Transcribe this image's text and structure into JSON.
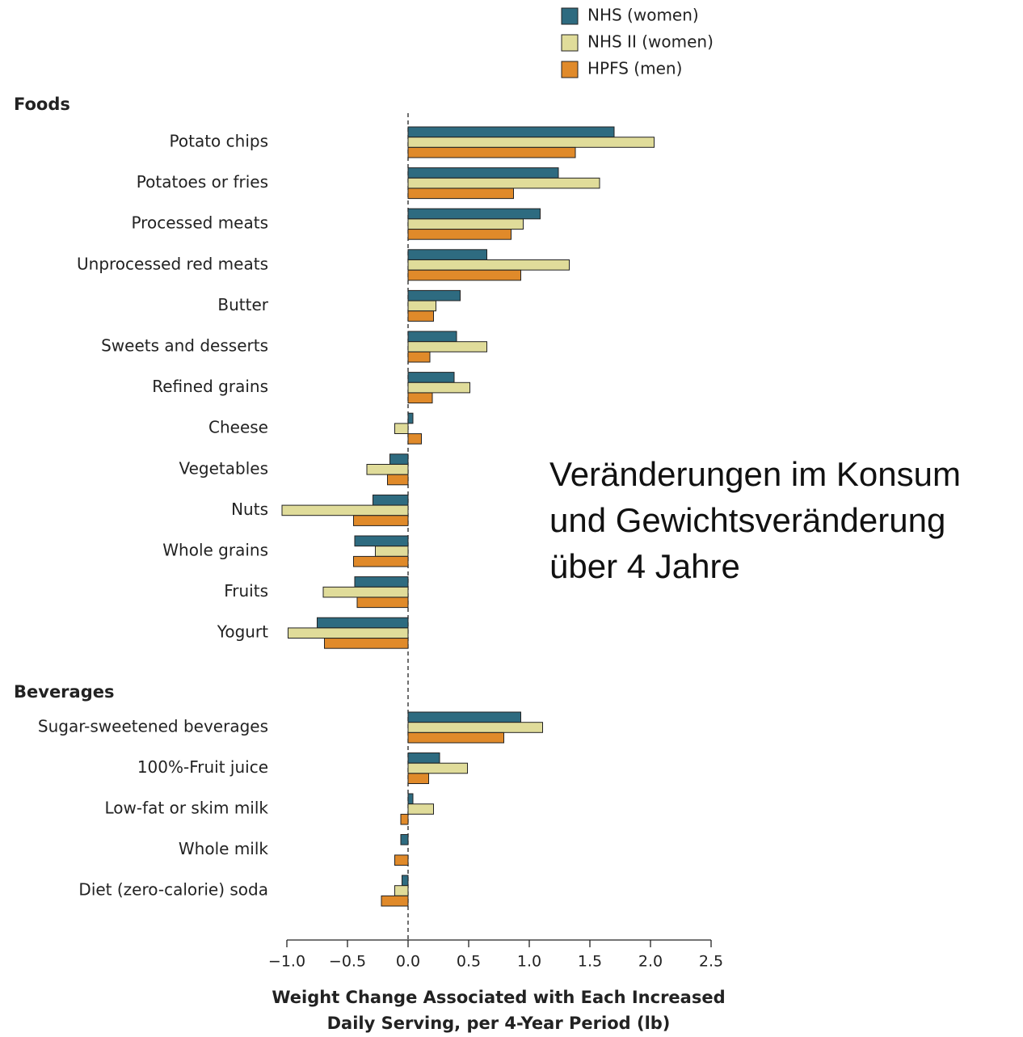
{
  "chart_data": {
    "type": "grouped-hbar",
    "annotation": "Veränderungen im Konsum und Gewichtsveränderung über 4 Jahre",
    "xlabel": [
      "Weight Change Associated with Each Increased",
      "Daily Serving, per 4-Year Period (lb)"
    ],
    "groups": [
      {
        "label": "Foods",
        "categories": [
          "Potato chips",
          "Potatoes or fries",
          "Processed meats",
          "Unprocessed red meats",
          "Butter",
          "Sweets and desserts",
          "Refined grains",
          "Cheese",
          "Vegetables",
          "Nuts",
          "Whole grains",
          "Fruits",
          "Yogurt"
        ]
      },
      {
        "label": "Beverages",
        "categories": [
          "Sugar-sweetened beverages",
          "100%-Fruit juice",
          "Low-fat or skim milk",
          "Whole milk",
          "Diet (zero-calorie) soda"
        ]
      }
    ],
    "series": [
      {
        "name": "NHS (women)",
        "color": "#2e6b80",
        "values": [
          [
            1.7,
            1.24,
            1.09,
            0.65,
            0.43,
            0.4,
            0.38,
            0.04,
            -0.15,
            -0.29,
            -0.44,
            -0.44,
            -0.75
          ],
          [
            0.93,
            0.26,
            0.04,
            -0.06,
            -0.05
          ]
        ]
      },
      {
        "name": "NHS II (women)",
        "color": "#e0dc9a",
        "values": [
          [
            2.03,
            1.58,
            0.95,
            1.33,
            0.23,
            0.65,
            0.51,
            -0.11,
            -0.34,
            -1.04,
            -0.27,
            -0.7,
            -0.99
          ],
          [
            1.11,
            0.49,
            0.21,
            null,
            -0.11
          ]
        ]
      },
      {
        "name": "HPFS (men)",
        "color": "#e08a2a",
        "values": [
          [
            1.38,
            0.87,
            0.85,
            0.93,
            0.21,
            0.18,
            0.2,
            0.11,
            -0.17,
            -0.45,
            -0.45,
            -0.42,
            -0.69
          ],
          [
            0.79,
            0.17,
            -0.06,
            -0.11,
            -0.22
          ]
        ]
      }
    ],
    "xlim": [
      -1.0,
      2.5
    ],
    "xticks": [
      {
        "value": -1.0,
        "label": "−1.0"
      },
      {
        "value": -0.5,
        "label": "−0.5"
      },
      {
        "value": 0,
        "label": "0.0"
      },
      0.5,
      {
        "value": 1.0,
        "label": "1.0"
      },
      1.5,
      {
        "value": 2.0,
        "label": "2.0"
      },
      2.5
    ]
  }
}
